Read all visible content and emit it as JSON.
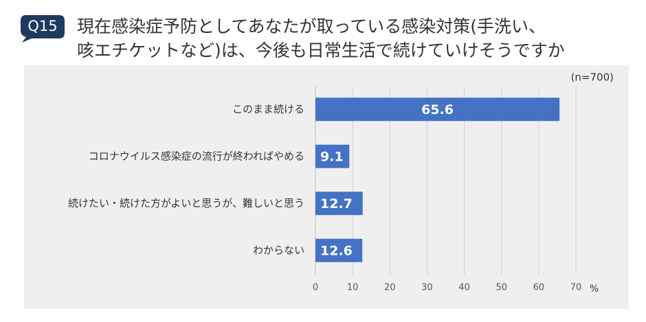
{
  "badge": "Q15",
  "chart_data": {
    "type": "hbar",
    "title": [
      "現在感染症予防としてあなたが取っている感染対策(手洗い、",
      "咳エチケットなど)は、今後も日常生活で続けていけそうですか"
    ],
    "annotation": "(n=700)",
    "xlabel": "%",
    "categories": [
      "このまま続ける",
      "コロナウイルス感染症の流行が終わればやめる",
      "続けたい・続けた方がよいと思うが、難しいと思う",
      "わからない"
    ],
    "values": [
      65.6,
      9.1,
      12.7,
      12.6
    ],
    "color": "#4472c4",
    "xlim": [
      0,
      70
    ],
    "xticks": [
      0,
      10,
      20,
      30,
      40,
      50,
      60,
      70
    ],
    "grid": true
  }
}
